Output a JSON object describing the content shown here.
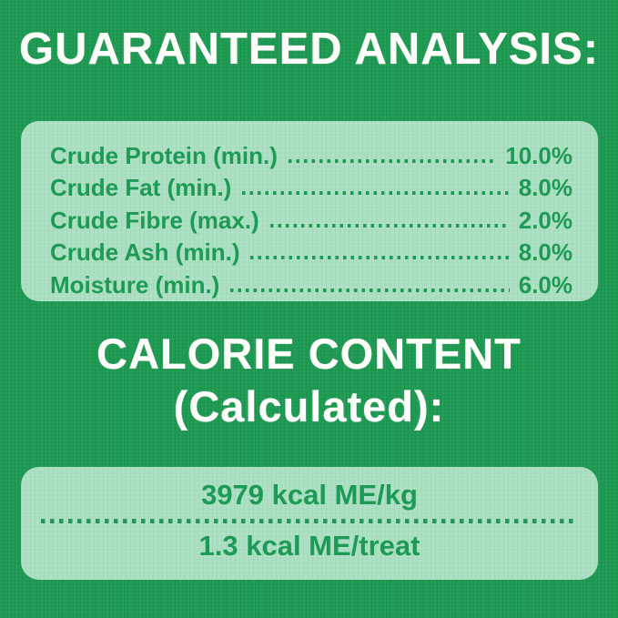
{
  "colors": {
    "background_green": "#1f9d54",
    "panel_mint": "#abdfc2",
    "text_green": "#1d9a56",
    "heading_white": "#fdfdfa"
  },
  "guaranteed_analysis": {
    "title": "GUARANTEED ANALYSIS:",
    "rows": [
      {
        "label": "Crude Protein (min.)",
        "value": "10.0%"
      },
      {
        "label": "Crude Fat (min.)",
        "value": "8.0%"
      },
      {
        "label": "Crude Fibre (max.)",
        "value": "2.0%"
      },
      {
        "label": "Crude Ash (min.)",
        "value": "8.0%"
      },
      {
        "label": "Moisture (min.)",
        "value": "6.0%"
      }
    ]
  },
  "calorie_content": {
    "title_line1": "CALORIE CONTENT",
    "title_line2": "(Calculated):",
    "per_kg": "3979 kcal ME/kg",
    "per_treat": "1.3 kcal ME/treat"
  }
}
